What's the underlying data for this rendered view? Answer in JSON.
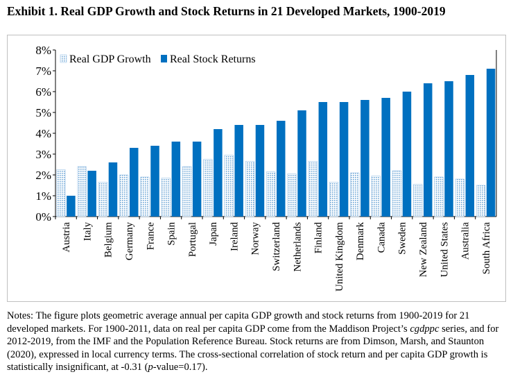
{
  "title": "Exhibit 1. Real GDP Growth and Stock Returns in 21 Developed Markets, 1900-2019",
  "chart_data": {
    "type": "bar",
    "categories": [
      "Austria",
      "Italy",
      "Belgium",
      "Germany",
      "France",
      "Spain",
      "Portugal",
      "Japan",
      "Ireland",
      "Norway",
      "Switzerland",
      "Netherlands",
      "Finland",
      "United Kingdom",
      "Denmark",
      "Canada",
      "Sweden",
      "New Zealand",
      "United States",
      "Australia",
      "South Africa"
    ],
    "series": [
      {
        "name": "Real GDP Growth",
        "color": "#bdd7ee",
        "pattern": "dotted",
        "values": [
          2.25,
          2.4,
          1.65,
          2.0,
          1.9,
          1.85,
          2.4,
          2.75,
          2.95,
          2.65,
          2.15,
          2.05,
          2.65,
          1.65,
          2.1,
          1.95,
          2.2,
          1.55,
          1.9,
          1.8,
          1.5
        ]
      },
      {
        "name": "Real Stock Returns",
        "color": "#0070c0",
        "pattern": "solid",
        "values": [
          1.0,
          2.2,
          2.6,
          3.3,
          3.4,
          3.6,
          3.6,
          4.2,
          4.4,
          4.4,
          4.6,
          5.1,
          5.5,
          5.5,
          5.6,
          5.7,
          6.0,
          6.4,
          6.5,
          6.8,
          7.1
        ]
      }
    ],
    "yticks": [
      "0%",
      "1%",
      "2%",
      "3%",
      "4%",
      "5%",
      "6%",
      "7%",
      "8%"
    ],
    "ylim": [
      0,
      8
    ],
    "xlabel": "",
    "ylabel": "",
    "grid": false,
    "legend": "top-left"
  },
  "notes": {
    "p1": "Notes: The figure plots geometric average annual per capita GDP growth and stock returns from 1900-2019 for 21 developed markets. For 1900-2011, data on real per capita GDP come from the Maddison Project’s ",
    "cgdppc": "cgdppc",
    "p2": " series, and for 2012-2019, from the IMF and the Population Reference Bureau. Stock returns are from Dimson, Marsh, and Staunton (2020), expressed in local currency terms. The cross-sectional correlation of stock return and per capita GDP growth is statistically insignificant, at -0.31 (",
    "pvalue": "p",
    "p3": "-value=0.17)."
  }
}
